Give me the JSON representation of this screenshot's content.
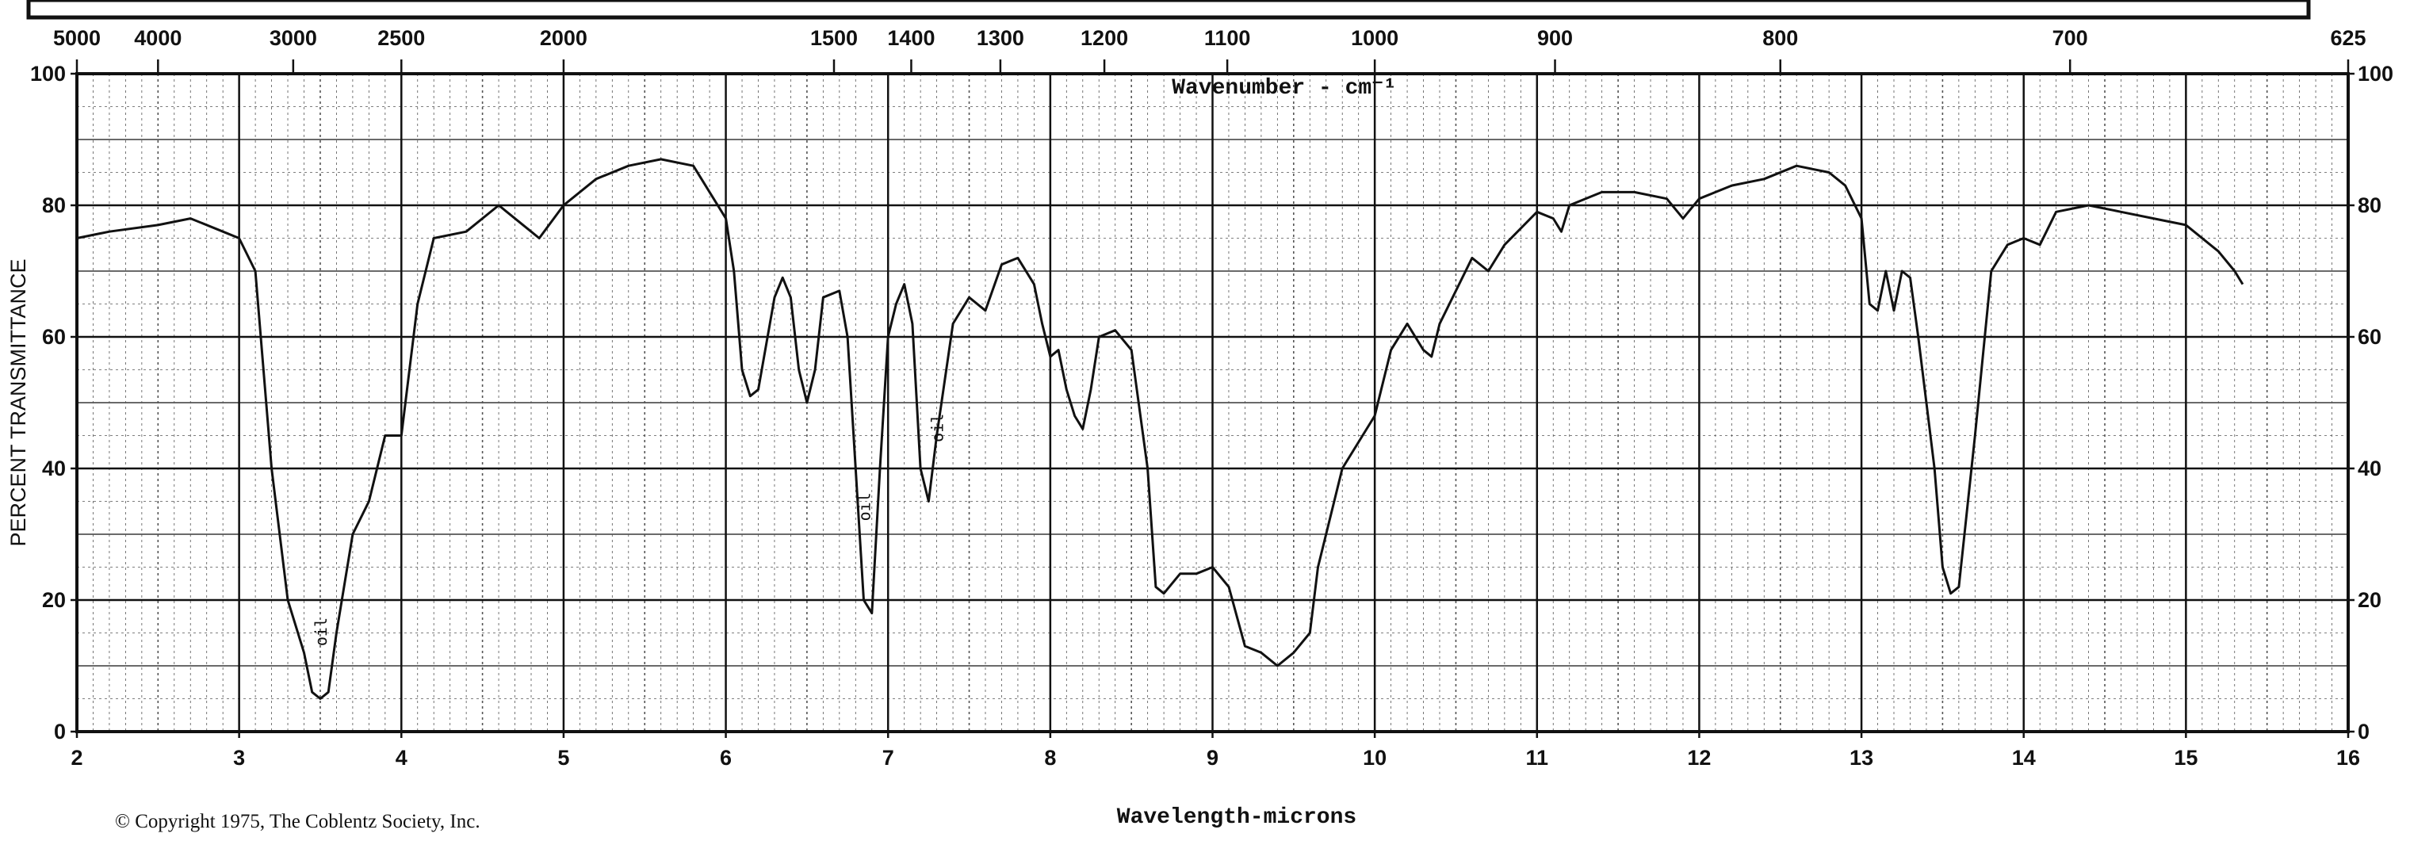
{
  "chart_data": {
    "type": "line",
    "title": "Wavenumber - cm⁻¹",
    "x_label": "Wavelength-microns",
    "y_label": "PERCENT TRANSMITTANCE",
    "footnote": "© Copyright 1975, The Coblentz Society, Inc.",
    "annotations": [
      "oil",
      "oil",
      "oil"
    ],
    "xlim": [
      2,
      16
    ],
    "ylim": [
      0,
      100
    ],
    "xticks": [
      2,
      3,
      4,
      5,
      6,
      7,
      8,
      9,
      10,
      11,
      12,
      13,
      14,
      15,
      16
    ],
    "yticks": [
      0,
      20,
      40,
      60,
      80,
      100
    ],
    "x2ticks": [
      5000,
      4000,
      3000,
      2500,
      2000,
      1500,
      1400,
      1300,
      1200,
      1100,
      1000,
      900,
      800,
      700,
      625
    ],
    "grid": true,
    "x": [
      2.0,
      2.2,
      2.5,
      2.7,
      2.9,
      3.0,
      3.1,
      3.2,
      3.3,
      3.4,
      3.45,
      3.5,
      3.55,
      3.6,
      3.7,
      3.8,
      3.9,
      4.0,
      4.1,
      4.2,
      4.4,
      4.6,
      4.8,
      4.85,
      5.0,
      5.2,
      5.4,
      5.6,
      5.8,
      5.9,
      6.0,
      6.05,
      6.1,
      6.15,
      6.2,
      6.3,
      6.35,
      6.4,
      6.45,
      6.5,
      6.55,
      6.6,
      6.7,
      6.75,
      6.8,
      6.85,
      6.9,
      6.95,
      7.0,
      7.05,
      7.1,
      7.15,
      7.2,
      7.25,
      7.3,
      7.4,
      7.5,
      7.6,
      7.7,
      7.8,
      7.9,
      7.95,
      8.0,
      8.05,
      8.1,
      8.15,
      8.2,
      8.25,
      8.3,
      8.4,
      8.5,
      8.6,
      8.65,
      8.7,
      8.8,
      8.9,
      9.0,
      9.1,
      9.2,
      9.3,
      9.4,
      9.5,
      9.6,
      9.65,
      9.8,
      10.0,
      10.1,
      10.2,
      10.3,
      10.35,
      10.4,
      10.6,
      10.7,
      10.8,
      11.0,
      11.1,
      11.15,
      11.2,
      11.4,
      11.6,
      11.8,
      11.9,
      12.0,
      12.2,
      12.4,
      12.6,
      12.8,
      12.9,
      13.0,
      13.05,
      13.1,
      13.15,
      13.2,
      13.25,
      13.3,
      13.35,
      13.45,
      13.5,
      13.55,
      13.6,
      13.7,
      13.8,
      13.9,
      14.0,
      14.1,
      14.2,
      14.4,
      14.6,
      14.8,
      15.0,
      15.2,
      15.3,
      15.35
    ],
    "series": [
      {
        "color": "#111111",
        "values": [
          75,
          76,
          77,
          78,
          76,
          75,
          70,
          40,
          20,
          12,
          6,
          5,
          6,
          15,
          30,
          35,
          45,
          45,
          65,
          75,
          76,
          80,
          76,
          75,
          80,
          84,
          86,
          87,
          86,
          82,
          78,
          70,
          55,
          51,
          52,
          66,
          69,
          66,
          55,
          50,
          55,
          66,
          67,
          60,
          40,
          20,
          18,
          40,
          60,
          65,
          68,
          62,
          40,
          35,
          45,
          62,
          66,
          64,
          71,
          72,
          68,
          62,
          57,
          58,
          52,
          48,
          46,
          52,
          60,
          61,
          58,
          40,
          22,
          21,
          24,
          24,
          25,
          22,
          13,
          12,
          10,
          12,
          15,
          25,
          40,
          48,
          58,
          62,
          58,
          57,
          62,
          72,
          70,
          74,
          79,
          78,
          76,
          80,
          82,
          82,
          81,
          78,
          81,
          83,
          84,
          86,
          85,
          83,
          78,
          65,
          64,
          70,
          64,
          70,
          69,
          60,
          40,
          25,
          21,
          22,
          45,
          70,
          74,
          75,
          74,
          79,
          80,
          79,
          78,
          77,
          73,
          70,
          68
        ]
      }
    ]
  }
}
